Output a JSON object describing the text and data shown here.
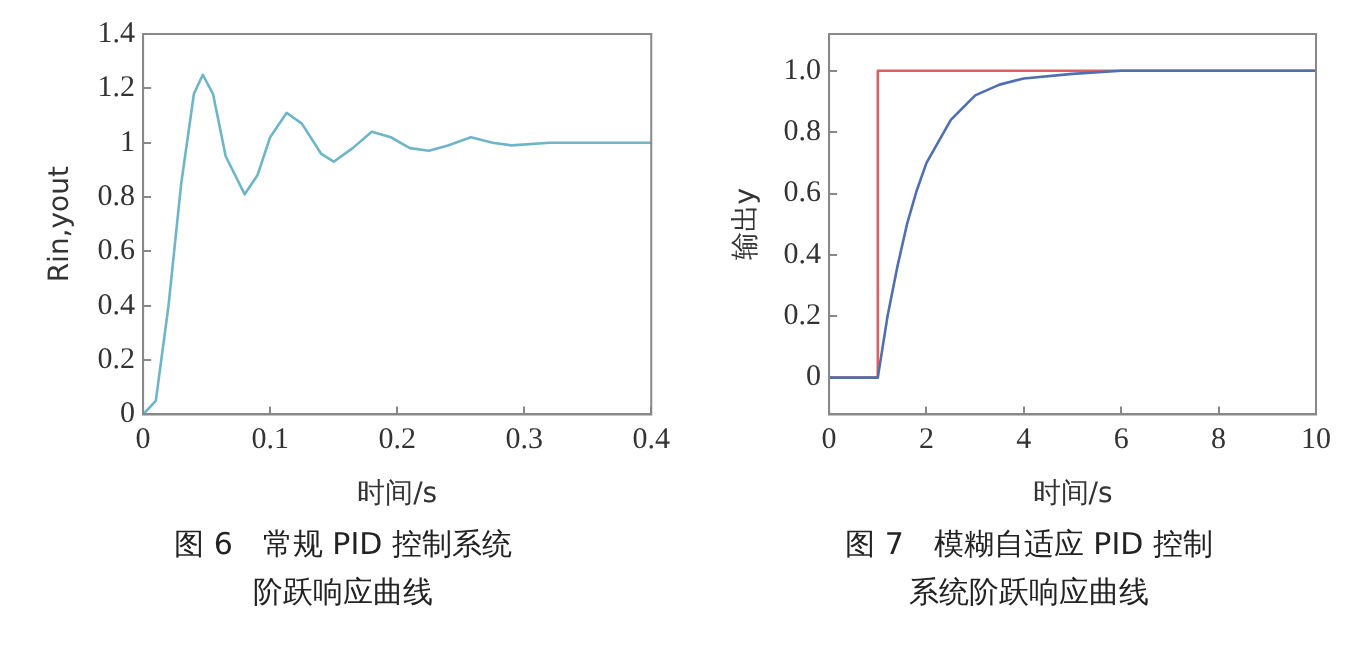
{
  "chart_data": [
    {
      "type": "line",
      "title": "图 6　常规 PID 控制系统阶跃响应曲线",
      "xlabel": "时间/s",
      "ylabel": "Rin,yout",
      "xlim": [
        0,
        0.4
      ],
      "xticks": [
        0,
        0.1,
        0.2,
        0.3,
        0.4
      ],
      "ylim": [
        0,
        1.4
      ],
      "yticks": [
        0,
        0.2,
        0.4,
        0.6,
        0.8,
        1.0,
        1.2,
        1.4
      ],
      "grid": false,
      "legend": false,
      "marker": "none",
      "line_style": "solid",
      "series": [
        {
          "color": "#6fb5c8",
          "x": [
            0,
            0.01,
            0.02,
            0.03,
            0.04,
            0.047,
            0.055,
            0.065,
            0.08,
            0.09,
            0.1,
            0.113,
            0.125,
            0.14,
            0.15,
            0.165,
            0.18,
            0.195,
            0.21,
            0.225,
            0.24,
            0.258,
            0.275,
            0.29,
            0.32,
            0.35,
            0.4
          ],
          "values": [
            0,
            0.05,
            0.4,
            0.85,
            1.18,
            1.25,
            1.18,
            0.95,
            0.81,
            0.88,
            1.02,
            1.11,
            1.07,
            0.96,
            0.93,
            0.98,
            1.04,
            1.02,
            0.98,
            0.97,
            0.99,
            1.02,
            1.0,
            0.99,
            1.0,
            1.0,
            1.0
          ]
        }
      ]
    },
    {
      "type": "line",
      "title": "图 7　模糊自适应 PID 控制系统阶跃响应曲线",
      "xlabel": "时间/s",
      "ylabel": "输出y",
      "xlim": [
        0,
        10
      ],
      "xticks": [
        0,
        2,
        4,
        6,
        8,
        10
      ],
      "ylim": [
        -0.12,
        1.12
      ],
      "yticks": [
        0,
        0.2,
        0.4,
        0.6,
        0.8,
        {
          "value": 1,
          "label": "1.0"
        }
      ],
      "grid": false,
      "legend": false,
      "marker": "none",
      "line_style": "solid",
      "series": [
        {
          "color": "#e06060",
          "x": [
            0,
            1,
            1,
            10
          ],
          "values": [
            0,
            0,
            1,
            1
          ]
        },
        {
          "color": "#4f6fb0",
          "x": [
            0,
            1,
            1.2,
            1.4,
            1.6,
            1.8,
            2,
            2.5,
            3,
            3.5,
            4,
            5,
            6,
            8,
            10
          ],
          "values": [
            0,
            0,
            0.2,
            0.36,
            0.5,
            0.61,
            0.7,
            0.84,
            0.92,
            0.955,
            0.975,
            0.99,
            1.0,
            1.0,
            1.0
          ]
        }
      ]
    }
  ]
}
